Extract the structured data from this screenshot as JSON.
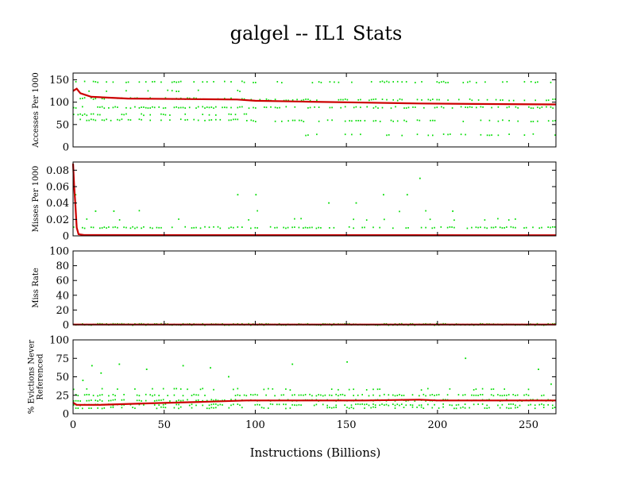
{
  "chart_data": {
    "type": "scatter",
    "title": "galgel -- IL1  Stats",
    "xlabel": "Instructions (Billions)",
    "xlim": [
      0,
      265
    ],
    "xticks": [
      0,
      50,
      100,
      150,
      200,
      250
    ],
    "colors": {
      "points": "#00dd00",
      "average": "#cc0000"
    },
    "grid": false,
    "panels": [
      {
        "id": "accesses",
        "ylabel": [
          "Accesses Per 1000"
        ],
        "ylim": [
          0,
          165
        ],
        "yticks": [
          0,
          50,
          100,
          150
        ],
        "series": [
          {
            "name": "",
            "role": "points",
            "bands": [
              {
                "x_range": [
                  0,
                  95
                ],
                "y": 145,
                "density": 0.35
              },
              {
                "x_range": [
                  0,
                  95
                ],
                "y": 125,
                "density": 0.2
              },
              {
                "x_range": [
                  0,
                  95
                ],
                "y": 108,
                "density": 0.5
              },
              {
                "x_range": [
                  0,
                  95
                ],
                "y": 88,
                "density": 0.6
              },
              {
                "x_range": [
                  0,
                  95
                ],
                "y": 72,
                "density": 0.3
              },
              {
                "x_range": [
                  0,
                  95
                ],
                "y": 60,
                "density": 0.5
              },
              {
                "x_range": [
                  95,
                  265
                ],
                "y": 145,
                "density": 0.25
              },
              {
                "x_range": [
                  95,
                  265
                ],
                "y": 105,
                "density": 0.45
              },
              {
                "x_range": [
                  95,
                  265
                ],
                "y": 88,
                "density": 0.4
              },
              {
                "x_range": [
                  95,
                  265
                ],
                "y": 58,
                "density": 0.35
              },
              {
                "x_range": [
                  95,
                  265
                ],
                "y": 27,
                "density": 0.2
              }
            ]
          },
          {
            "name": "",
            "role": "average",
            "points": [
              [
                0,
                125
              ],
              [
                2,
                130
              ],
              [
                4,
                120
              ],
              [
                10,
                112
              ],
              [
                30,
                108
              ],
              [
                60,
                107
              ],
              [
                90,
                106
              ],
              [
                100,
                103
              ],
              [
                130,
                101
              ],
              [
                160,
                99
              ],
              [
                190,
                97
              ],
              [
                220,
                96
              ],
              [
                265,
                95
              ]
            ]
          }
        ]
      },
      {
        "id": "misses",
        "ylabel": [
          "Misses Per 1000"
        ],
        "ylim": [
          0,
          0.09
        ],
        "yticks": [
          0,
          0.02,
          0.04,
          0.06,
          0.08
        ],
        "series": [
          {
            "name": "",
            "role": "points",
            "bands": [
              {
                "x_range": [
                  0,
                  265
                ],
                "y": 0.01,
                "density": 0.5
              },
              {
                "x_range": [
                  0,
                  265
                ],
                "y": 0.02,
                "density": 0.08
              },
              {
                "x_range": [
                  0,
                  265
                ],
                "y": 0.03,
                "density": 0.03
              }
            ],
            "outliers": [
              [
                1,
                0.05
              ],
              [
                12,
                0.03
              ],
              [
                22,
                0.03
              ],
              [
                90,
                0.05
              ],
              [
                100,
                0.05
              ],
              [
                140,
                0.04
              ],
              [
                155,
                0.04
              ],
              [
                170,
                0.05
              ],
              [
                183,
                0.05
              ],
              [
                190,
                0.07
              ],
              [
                208,
                0.03
              ]
            ]
          },
          {
            "name": "",
            "role": "average",
            "points": [
              [
                0,
                0.088
              ],
              [
                0.6,
                0.06
              ],
              [
                1.2,
                0.04
              ],
              [
                2,
                0.01
              ],
              [
                3,
                0.002
              ],
              [
                6,
                0.001
              ],
              [
                265,
                0.0008
              ]
            ]
          }
        ]
      },
      {
        "id": "missrate",
        "ylabel": [
          "Miss Rate"
        ],
        "ylim": [
          0,
          100
        ],
        "yticks": [
          0,
          20,
          40,
          60,
          80,
          100
        ],
        "series": [
          {
            "name": "",
            "role": "points",
            "bands": [
              {
                "x_range": [
                  0,
                  265
                ],
                "y": 0.3,
                "density": 1.0
              }
            ]
          },
          {
            "name": "",
            "role": "average",
            "points": [
              [
                0,
                0.3
              ],
              [
                265,
                0.3
              ]
            ]
          }
        ]
      },
      {
        "id": "evictions",
        "ylabel": [
          "% Evictions Never",
          "Referenced"
        ],
        "ylim": [
          0,
          100
        ],
        "yticks": [
          0,
          25,
          50,
          75,
          100
        ],
        "series": [
          {
            "name": "",
            "role": "points",
            "bands": [
              {
                "x_range": [
                  0,
                  265
                ],
                "y": 12,
                "density": 0.5
              },
              {
                "x_range": [
                  0,
                  265
                ],
                "y": 18,
                "density": 0.6
              },
              {
                "x_range": [
                  0,
                  265
                ],
                "y": 25,
                "density": 0.45
              },
              {
                "x_range": [
                  0,
                  265
                ],
                "y": 8,
                "density": 0.3
              },
              {
                "x_range": [
                  0,
                  265
                ],
                "y": 33,
                "density": 0.15
              }
            ],
            "outliers": [
              [
                5,
                45
              ],
              [
                10,
                65
              ],
              [
                15,
                55
              ],
              [
                25,
                67
              ],
              [
                40,
                60
              ],
              [
                60,
                65
              ],
              [
                75,
                62
              ],
              [
                85,
                50
              ],
              [
                120,
                67
              ],
              [
                150,
                70
              ],
              [
                215,
                75
              ],
              [
                255,
                60
              ],
              [
                262,
                40
              ]
            ]
          },
          {
            "name": "",
            "role": "average",
            "points": [
              [
                0,
                15
              ],
              [
                2,
                12
              ],
              [
                15,
                12
              ],
              [
                40,
                14
              ],
              [
                70,
                16
              ],
              [
                95,
                18
              ],
              [
                130,
                18
              ],
              [
                160,
                18
              ],
              [
                190,
                19
              ],
              [
                200,
                18
              ],
              [
                265,
                18
              ]
            ]
          }
        ]
      }
    ]
  }
}
